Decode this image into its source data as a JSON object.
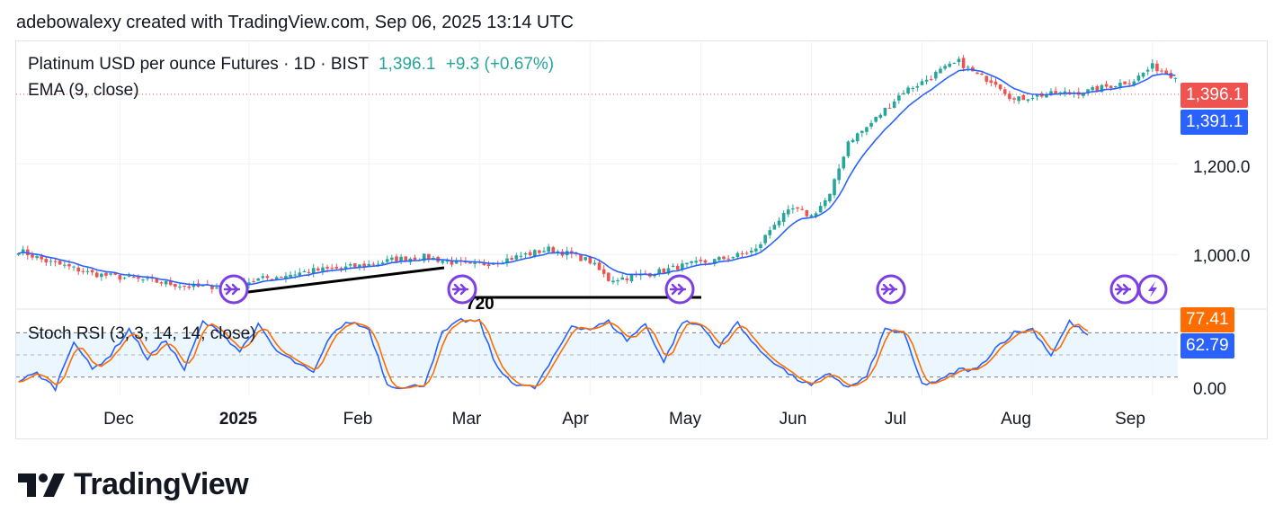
{
  "header": {
    "attribution": "adebowalexy created with TradingView.com, Sep 06, 2025 13:14 UTC"
  },
  "legend": {
    "symbol": "Platinum USD per ounce Futures · 1D · BIST",
    "last": "1,396.1",
    "change": "+9.3 (+0.67%)",
    "ema": "EMA (9, close)",
    "stoch": "Stoch RSI (3, 3, 14, 14, close)"
  },
  "price_badges": {
    "last": "1,396.1",
    "ema": "1,391.1",
    "k": "77.41",
    "d": "62.79"
  },
  "colors": {
    "up": "#26a69a",
    "down": "#ef5350",
    "ema": "#2962ff",
    "k_line": "#2962ff",
    "d_line": "#ff6d00",
    "badge_red": "#ef5350",
    "badge_blue": "#2962ff",
    "badge_orange": "#ff6d00",
    "event": "#7b3fe4"
  },
  "event_icons": [
    "forward-arrow-icon",
    "lightning-icon"
  ],
  "partial_label": "720",
  "chart_data": {
    "type": "candlestick",
    "title": "Platinum USD per ounce Futures · 1D · BIST",
    "y_ticks": [
      "1,200.0",
      "1,000.0"
    ],
    "y_tick_values": [
      1200,
      1000
    ],
    "ylim": [
      880,
      1470
    ],
    "x_ticks": [
      "Dec",
      "2025",
      "Feb",
      "Mar",
      "Apr",
      "May",
      "Jun",
      "Jul",
      "Aug",
      "Sep"
    ],
    "x_tick_index": [
      22,
      50,
      76,
      100,
      124,
      148,
      172,
      196,
      220,
      246
    ],
    "anchors": [
      [
        0,
        1010
      ],
      [
        6,
        985
      ],
      [
        10,
        975
      ],
      [
        16,
        958
      ],
      [
        22,
        950
      ],
      [
        30,
        940
      ],
      [
        38,
        928
      ],
      [
        46,
        932
      ],
      [
        52,
        945
      ],
      [
        58,
        955
      ],
      [
        64,
        965
      ],
      [
        70,
        970
      ],
      [
        76,
        978
      ],
      [
        82,
        990
      ],
      [
        88,
        995
      ],
      [
        93,
        985
      ],
      [
        98,
        975
      ],
      [
        104,
        985
      ],
      [
        110,
        1000
      ],
      [
        115,
        1012
      ],
      [
        120,
        1000
      ],
      [
        124,
        985
      ],
      [
        128,
        945
      ],
      [
        132,
        950
      ],
      [
        138,
        960
      ],
      [
        144,
        975
      ],
      [
        150,
        985
      ],
      [
        156,
        998
      ],
      [
        160,
        1010
      ],
      [
        164,
        1070
      ],
      [
        168,
        1100
      ],
      [
        172,
        1085
      ],
      [
        176,
        1130
      ],
      [
        180,
        1250
      ],
      [
        184,
        1280
      ],
      [
        188,
        1320
      ],
      [
        192,
        1360
      ],
      [
        196,
        1380
      ],
      [
        200,
        1405
      ],
      [
        204,
        1425
      ],
      [
        208,
        1395
      ],
      [
        212,
        1380
      ],
      [
        216,
        1340
      ],
      [
        220,
        1350
      ],
      [
        226,
        1355
      ],
      [
        232,
        1360
      ],
      [
        238,
        1375
      ],
      [
        242,
        1385
      ],
      [
        246,
        1415
      ],
      [
        250,
        1396
      ]
    ],
    "stoch_range": [
      0,
      100
    ],
    "stoch_ticks": [
      "0.00"
    ],
    "stoch_bands": [
      20,
      80
    ],
    "stoch_anchors": [
      [
        0,
        15
      ],
      [
        4,
        25
      ],
      [
        8,
        5
      ],
      [
        12,
        70
      ],
      [
        16,
        30
      ],
      [
        20,
        50
      ],
      [
        24,
        85
      ],
      [
        28,
        45
      ],
      [
        32,
        70
      ],
      [
        36,
        30
      ],
      [
        40,
        95
      ],
      [
        44,
        80
      ],
      [
        48,
        55
      ],
      [
        52,
        90
      ],
      [
        56,
        55
      ],
      [
        60,
        40
      ],
      [
        64,
        25
      ],
      [
        68,
        80
      ],
      [
        72,
        95
      ],
      [
        76,
        85
      ],
      [
        80,
        10
      ],
      [
        84,
        5
      ],
      [
        88,
        10
      ],
      [
        92,
        80
      ],
      [
        96,
        97
      ],
      [
        100,
        95
      ],
      [
        104,
        30
      ],
      [
        108,
        10
      ],
      [
        112,
        5
      ],
      [
        116,
        45
      ],
      [
        120,
        90
      ],
      [
        124,
        85
      ],
      [
        128,
        95
      ],
      [
        132,
        70
      ],
      [
        136,
        92
      ],
      [
        140,
        40
      ],
      [
        144,
        95
      ],
      [
        148,
        90
      ],
      [
        152,
        60
      ],
      [
        156,
        95
      ],
      [
        160,
        60
      ],
      [
        164,
        40
      ],
      [
        168,
        20
      ],
      [
        172,
        8
      ],
      [
        176,
        25
      ],
      [
        180,
        5
      ],
      [
        184,
        20
      ],
      [
        188,
        85
      ],
      [
        192,
        80
      ],
      [
        196,
        10
      ],
      [
        200,
        15
      ],
      [
        204,
        30
      ],
      [
        208,
        30
      ],
      [
        212,
        60
      ],
      [
        216,
        80
      ],
      [
        220,
        85
      ],
      [
        224,
        50
      ],
      [
        228,
        95
      ],
      [
        232,
        77
      ]
    ]
  }
}
